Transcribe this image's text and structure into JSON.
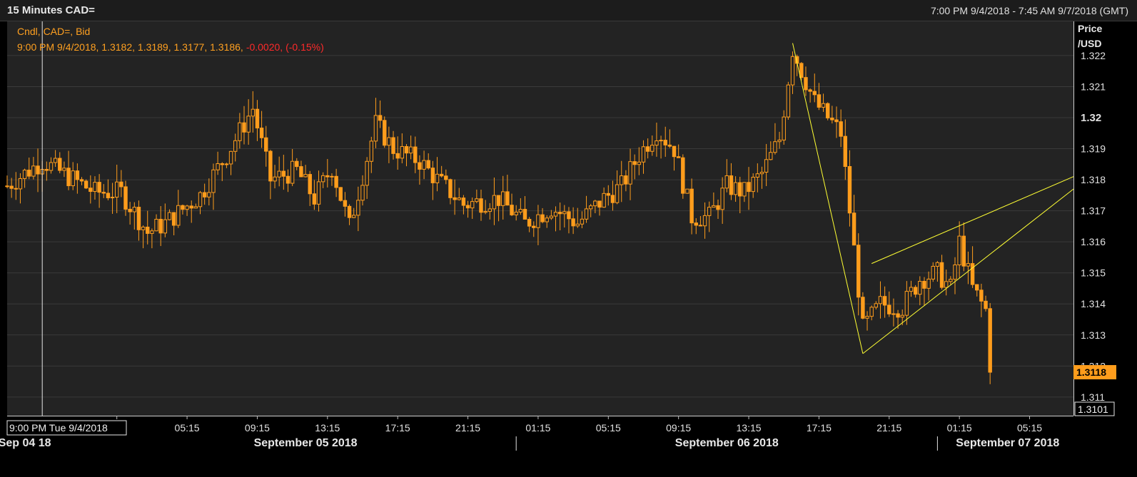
{
  "header": {
    "title": "15 Minutes CAD=",
    "range": "7:00 PM 9/4/2018 - 7:45 AM 9/7/2018 (GMT)"
  },
  "legend": {
    "series_label": "Cndl, CAD=, Bid",
    "ohlc_text": "9:00 PM 9/4/2018, 1.3182, 1.3189, 1.3177, 1.3186,",
    "change_text": "-0.0020, (-0.15%)"
  },
  "axis": {
    "price_label_line1": "Price",
    "price_label_line2": "/USD",
    "last_price": "1.3118",
    "cursor_price": "1.3101",
    "cursor_time": "9:00 PM Tue 9/4/2018"
  },
  "colors": {
    "background": "#232323",
    "candle": "#ff9d1c",
    "trendline": "#ffff33",
    "negative": "#ff2a2a",
    "legend_text": "#ffa020"
  },
  "chart_data": {
    "type": "candlestick",
    "title": "15 Minutes CAD=",
    "series_name": "Cndl, CAD=, Bid",
    "x_range": [
      "2018-09-04 19:00",
      "2018-09-07 07:45"
    ],
    "ylim": [
      1.3104,
      1.3231
    ],
    "y_ticks": [
      1.311,
      1.312,
      1.313,
      1.314,
      1.315,
      1.316,
      1.317,
      1.318,
      1.319,
      1.32,
      1.321,
      1.322
    ],
    "y_tick_labels": [
      "1.311",
      "1.312",
      "1.313",
      "1.314",
      "1.315",
      "1.316",
      "1.317",
      "1.318",
      "1.319",
      "1.32",
      "1.321",
      "1.322"
    ],
    "x_ticks": [
      {
        "time": "2018-09-05 01:15",
        "label": "5"
      },
      {
        "time": "2018-09-05 05:15",
        "label": "05:15"
      },
      {
        "time": "2018-09-05 09:15",
        "label": "09:15"
      },
      {
        "time": "2018-09-05 13:15",
        "label": "13:15"
      },
      {
        "time": "2018-09-05 17:15",
        "label": "17:15"
      },
      {
        "time": "2018-09-05 21:15",
        "label": "21:15"
      },
      {
        "time": "2018-09-06 01:15",
        "label": "01:15"
      },
      {
        "time": "2018-09-06 05:15",
        "label": "05:15"
      },
      {
        "time": "2018-09-06 09:15",
        "label": "09:15"
      },
      {
        "time": "2018-09-06 13:15",
        "label": "13:15"
      },
      {
        "time": "2018-09-06 17:15",
        "label": "17:15"
      },
      {
        "time": "2018-09-06 21:15",
        "label": "21:15"
      },
      {
        "time": "2018-09-07 01:15",
        "label": "01:15"
      },
      {
        "time": "2018-09-07 05:15",
        "label": "05:15"
      }
    ],
    "date_labels": [
      {
        "time": "2018-09-04 20:00",
        "label": "Sep 04 18"
      },
      {
        "time": "2018-09-05 12:00",
        "label": "September 05 2018"
      },
      {
        "time": "2018-09-06 12:00",
        "label": "September 06 2018"
      },
      {
        "time": "2018-09-07 04:00",
        "label": "September 07 2018"
      }
    ],
    "day_separators": [
      "2018-09-06 00:00",
      "2018-09-07 00:00"
    ],
    "cursor_time": "2018-09-04 21:00",
    "last_value": 1.3118,
    "ohlc_points": [
      {
        "t": "2018-09-04 19:00",
        "c": 1.3178
      },
      {
        "t": "2018-09-04 21:00",
        "c": 1.3186
      },
      {
        "t": "2018-09-05 00:00",
        "c": 1.3176
      },
      {
        "t": "2018-09-05 01:30",
        "c": 1.3176
      },
      {
        "t": "2018-09-05 03:00",
        "c": 1.3163
      },
      {
        "t": "2018-09-05 04:00",
        "c": 1.3166
      },
      {
        "t": "2018-09-05 06:00",
        "c": 1.3175
      },
      {
        "t": "2018-09-05 07:30",
        "c": 1.3188
      },
      {
        "t": "2018-09-05 09:00",
        "c": 1.3203
      },
      {
        "t": "2018-09-05 10:00",
        "c": 1.318
      },
      {
        "t": "2018-09-05 11:30",
        "c": 1.3183
      },
      {
        "t": "2018-09-05 12:30",
        "c": 1.3174
      },
      {
        "t": "2018-09-05 13:30",
        "c": 1.3184
      },
      {
        "t": "2018-09-05 14:30",
        "c": 1.3165
      },
      {
        "t": "2018-09-05 16:00",
        "c": 1.3198
      },
      {
        "t": "2018-09-05 17:00",
        "c": 1.319
      },
      {
        "t": "2018-09-05 18:30",
        "c": 1.3186
      },
      {
        "t": "2018-09-05 19:30",
        "c": 1.318
      },
      {
        "t": "2018-09-05 21:00",
        "c": 1.3172
      },
      {
        "t": "2018-09-05 23:00",
        "c": 1.3174
      },
      {
        "t": "2018-09-06 00:30",
        "c": 1.3166
      },
      {
        "t": "2018-09-06 02:00",
        "c": 1.3171
      },
      {
        "t": "2018-09-06 03:30",
        "c": 1.3166
      },
      {
        "t": "2018-09-06 05:00",
        "c": 1.3174
      },
      {
        "t": "2018-09-06 06:00",
        "c": 1.3178
      },
      {
        "t": "2018-09-06 07:00",
        "c": 1.3188
      },
      {
        "t": "2018-09-06 08:00",
        "c": 1.3196
      },
      {
        "t": "2018-09-06 09:00",
        "c": 1.319
      },
      {
        "t": "2018-09-06 10:00",
        "c": 1.3168
      },
      {
        "t": "2018-09-06 11:00",
        "c": 1.3168
      },
      {
        "t": "2018-09-06 12:00",
        "c": 1.3178
      },
      {
        "t": "2018-09-06 13:00",
        "c": 1.3176
      },
      {
        "t": "2018-09-06 14:00",
        "c": 1.3182
      },
      {
        "t": "2018-09-06 15:00",
        "c": 1.3193
      },
      {
        "t": "2018-09-06 15:45",
        "c": 1.3222
      },
      {
        "t": "2018-09-06 17:00",
        "c": 1.3205
      },
      {
        "t": "2018-09-06 18:30",
        "c": 1.3195
      },
      {
        "t": "2018-09-06 19:30",
        "c": 1.3145
      },
      {
        "t": "2018-09-06 19:45",
        "c": 1.3132
      },
      {
        "t": "2018-09-06 20:45",
        "c": 1.314
      },
      {
        "t": "2018-09-06 22:00",
        "c": 1.3139
      },
      {
        "t": "2018-09-06 23:00",
        "c": 1.3148
      },
      {
        "t": "2018-09-07 00:00",
        "c": 1.315
      },
      {
        "t": "2018-09-07 00:45",
        "c": 1.3145
      },
      {
        "t": "2018-09-07 01:15",
        "c": 1.316
      },
      {
        "t": "2018-09-07 02:00",
        "c": 1.3145
      },
      {
        "t": "2018-09-07 02:45",
        "c": 1.3138
      },
      {
        "t": "2018-09-07 03:00",
        "c": 1.3118
      }
    ]
  }
}
